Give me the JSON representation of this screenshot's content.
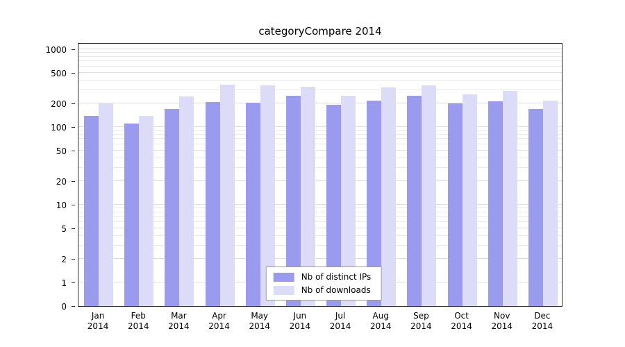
{
  "page": {
    "background": "#ffffff"
  },
  "chart_data": {
    "type": "bar",
    "title": "categoryCompare 2014",
    "categories": [
      "Jan 2014",
      "Feb 2014",
      "Mar 2014",
      "Apr 2014",
      "May 2014",
      "Jun 2014",
      "Jul 2014",
      "Aug 2014",
      "Sep 2014",
      "Oct 2014",
      "Nov 2014",
      "Dec 2014"
    ],
    "series": [
      {
        "name": "Nb of distinct IPs",
        "color": "#9a9aee",
        "values": [
          140,
          112,
          170,
          210,
          207,
          250,
          195,
          220,
          250,
          202,
          212,
          170
        ]
      },
      {
        "name": "Nb of downloads",
        "color": "#dcdcf9",
        "values": [
          200,
          140,
          248,
          350,
          345,
          330,
          250,
          325,
          340,
          265,
          290,
          218
        ]
      }
    ],
    "yticks": [
      0,
      1,
      2,
      5,
      10,
      20,
      50,
      100,
      200,
      500,
      1000
    ],
    "yscale": "log",
    "ylim": [
      0,
      1000
    ],
    "xlabel": "",
    "ylabel": "",
    "grid": true,
    "legend_position": "bottom-center-inside"
  }
}
